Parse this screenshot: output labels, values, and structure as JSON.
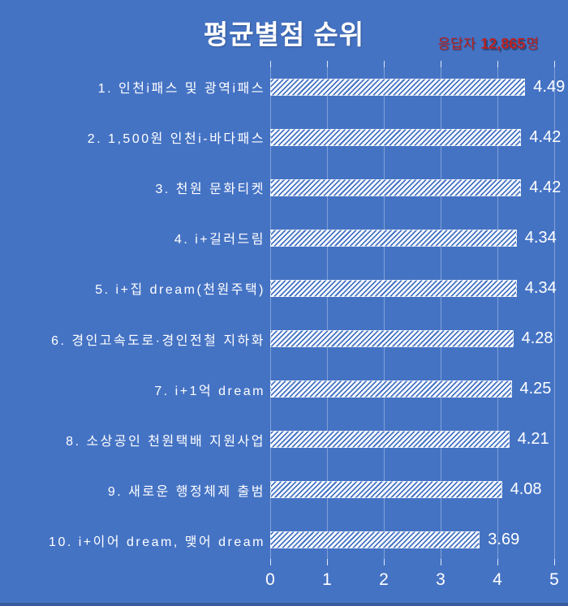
{
  "header": {
    "title": "평균별점 순위",
    "respondents_prefix": "응답자",
    "respondents_count": "12,865",
    "respondents_suffix": "명"
  },
  "colors": {
    "background": "#4573c4",
    "bar_stripe": "#ffffff",
    "accent_red": "#b92121",
    "gridline": "rgba(255,255,255,0.32)",
    "text": "#ffffff"
  },
  "chart_data": {
    "type": "bar",
    "orientation": "horizontal",
    "title": "평균별점 순위",
    "categories": [
      "1. 인천i패스 및 광역i패스",
      "2. 1,500원 인천i-바다패스",
      "3. 천원 문화티켓",
      "4. i+길러드림",
      "5. i+집 dream(천원주택)",
      "6. 경인고속도로·경인전철 지하화",
      "7. i+1억 dream",
      "8. 소상공인 천원택배 지원사업",
      "9. 새로운 행정체제 출범",
      "10. i+이어 dream, 맺어 dream"
    ],
    "values": [
      4.49,
      4.42,
      4.42,
      4.34,
      4.34,
      4.28,
      4.25,
      4.21,
      4.08,
      3.69
    ],
    "value_labels": [
      "4.49",
      "4.42",
      "4.42",
      "4.34",
      "4.34",
      "4.28",
      "4.25",
      "4.21",
      "4.08",
      "3.69"
    ],
    "xlabel": "",
    "ylabel": "",
    "xlim": [
      0,
      5
    ],
    "x_ticks": [
      0,
      1,
      2,
      3,
      4,
      5
    ],
    "grid": true,
    "bar_style": "white-diagonal-hatch"
  }
}
